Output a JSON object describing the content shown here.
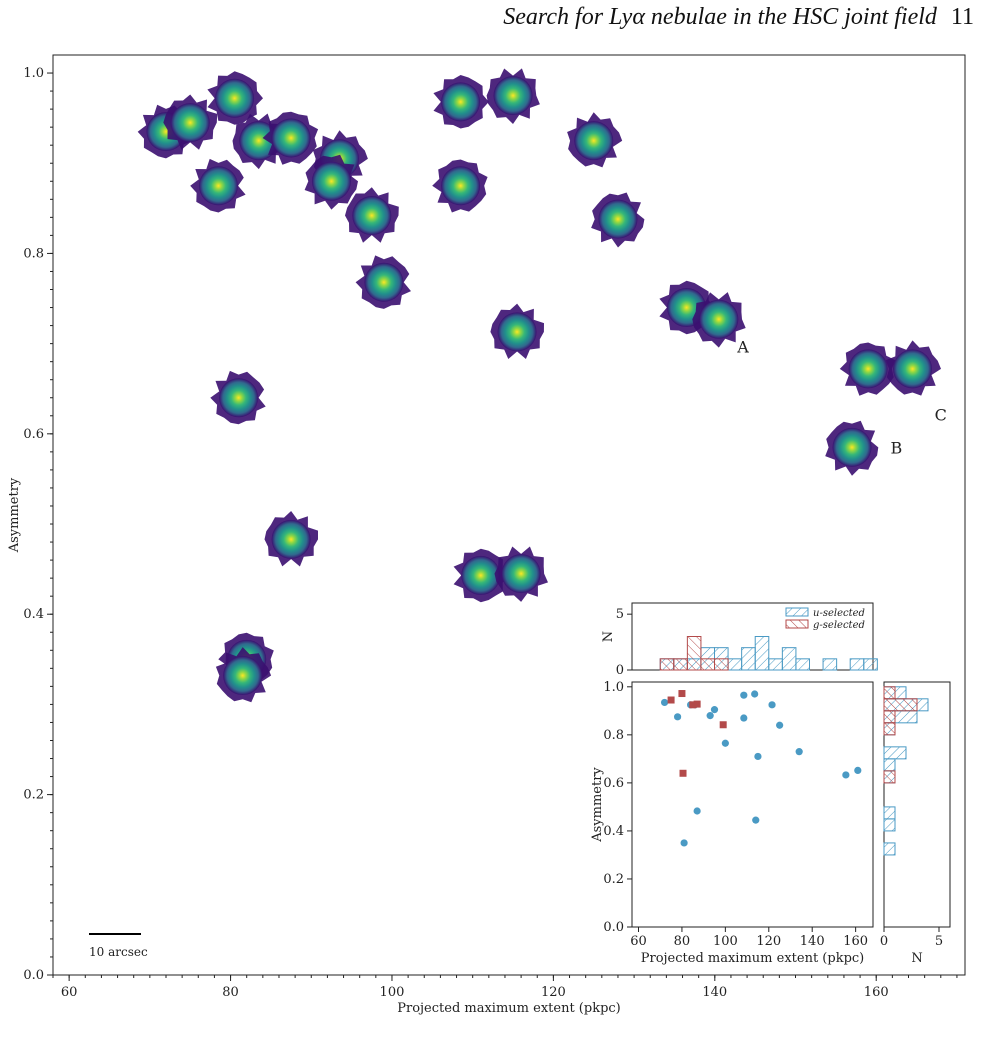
{
  "header": {
    "running_title": "Search for Lyα nebulae in the HSC joint field",
    "page_number": "11"
  },
  "scale_bar_label": "10 arcsec",
  "colors": {
    "u_selected": "#4a9ac4",
    "g_selected": "#b34a4a",
    "blob_outer": "#3b0f70",
    "blob_mid": "#21908c",
    "blob_core": "#fde725"
  },
  "chart_data": [
    {
      "type": "scatter",
      "title": "",
      "xlabel": "Projected maximum extent (pkpc)",
      "ylabel": "Asymmetry",
      "xlim": [
        58,
        171
      ],
      "ylim": [
        0,
        1.02
      ],
      "xticks": [
        60,
        80,
        100,
        120,
        140,
        160
      ],
      "yticks": [
        0.0,
        0.2,
        0.4,
        0.6,
        0.8,
        1.0
      ],
      "marker": "nebula-thumbnail",
      "points": [
        {
          "x": 72,
          "y": 0.935
        },
        {
          "x": 75,
          "y": 0.945
        },
        {
          "x": 80.5,
          "y": 0.972
        },
        {
          "x": 83.5,
          "y": 0.925
        },
        {
          "x": 87.5,
          "y": 0.928
        },
        {
          "x": 93.5,
          "y": 0.905
        },
        {
          "x": 92.5,
          "y": 0.88
        },
        {
          "x": 78.5,
          "y": 0.875
        },
        {
          "x": 97.5,
          "y": 0.842
        },
        {
          "x": 108.5,
          "y": 0.968
        },
        {
          "x": 115,
          "y": 0.975
        },
        {
          "x": 108.5,
          "y": 0.875
        },
        {
          "x": 125,
          "y": 0.925
        },
        {
          "x": 128,
          "y": 0.838
        },
        {
          "x": 99,
          "y": 0.768
        },
        {
          "x": 115.5,
          "y": 0.713
        },
        {
          "x": 136.5,
          "y": 0.74
        },
        {
          "x": 140.5,
          "y": 0.727
        },
        {
          "x": 159,
          "y": 0.672
        },
        {
          "x": 164.5,
          "y": 0.672
        },
        {
          "x": 157,
          "y": 0.585
        },
        {
          "x": 81,
          "y": 0.64
        },
        {
          "x": 87.5,
          "y": 0.483
        },
        {
          "x": 111,
          "y": 0.443
        },
        {
          "x": 116,
          "y": 0.445
        },
        {
          "x": 82,
          "y": 0.35
        },
        {
          "x": 81.5,
          "y": 0.332
        }
      ],
      "annotations": [
        {
          "text": "A",
          "x": 143.5,
          "y": 0.69
        },
        {
          "text": "C",
          "x": 168,
          "y": 0.615
        },
        {
          "text": "B",
          "x": 162.5,
          "y": 0.578
        }
      ]
    },
    {
      "type": "scatter",
      "xlabel": "Projected maximum extent (pkpc)",
      "ylabel": "Asymmetry",
      "xlim": [
        57,
        168
      ],
      "ylim": [
        0,
        1.02
      ],
      "xticks": [
        60,
        80,
        100,
        120,
        140,
        160
      ],
      "yticks": [
        0.0,
        0.2,
        0.4,
        0.6,
        0.8,
        1.0
      ],
      "series": [
        {
          "name": "u-selected",
          "marker": "circle",
          "x": [
            72,
            78,
            84,
            86,
            93,
            95,
            100,
            108.5,
            108.5,
            113.5,
            115,
            121.5,
            125,
            134,
            155.5,
            161,
            87,
            81,
            114
          ],
          "y": [
            0.935,
            0.875,
            0.925,
            0.925,
            0.88,
            0.905,
            0.765,
            0.87,
            0.965,
            0.97,
            0.71,
            0.925,
            0.84,
            0.73,
            0.633,
            0.652,
            0.483,
            0.35,
            0.445
          ]
        },
        {
          "name": "g-selected",
          "marker": "square",
          "x": [
            75,
            80,
            85,
            87,
            99,
            80.5
          ],
          "y": [
            0.945,
            0.972,
            0.925,
            0.928,
            0.842,
            0.64
          ]
        }
      ]
    },
    {
      "type": "bar",
      "orientation": "vertical",
      "ylabel": "N",
      "ylim": [
        0,
        6
      ],
      "yticks": [
        0,
        5
      ],
      "legend_placement": "top-right",
      "legend": [
        "u-selected",
        "g-selected"
      ],
      "bin_width": 6.25,
      "series": [
        {
          "name": "u-selected",
          "bins": [
            [
              70,
              76.25,
              1
            ],
            [
              76.25,
              82.5,
              1
            ],
            [
              82.5,
              88.75,
              1
            ],
            [
              88.75,
              95,
              2
            ],
            [
              95,
              101.25,
              2
            ],
            [
              101.25,
              107.5,
              1
            ],
            [
              107.5,
              113.75,
              2
            ],
            [
              113.75,
              120,
              3
            ],
            [
              120,
              126.25,
              1
            ],
            [
              126.25,
              132.5,
              2
            ],
            [
              132.5,
              138.75,
              1
            ],
            [
              145,
              151.25,
              1
            ],
            [
              157.5,
              163.75,
              1
            ],
            [
              163.75,
              170,
              1
            ]
          ]
        },
        {
          "name": "g-selected",
          "bins": [
            [
              70,
              76.25,
              1
            ],
            [
              76.25,
              82.5,
              1
            ],
            [
              82.5,
              88.75,
              3
            ],
            [
              88.75,
              95,
              1
            ],
            [
              95,
              101.25,
              1
            ]
          ]
        }
      ]
    },
    {
      "type": "bar",
      "orientation": "horizontal",
      "xlabel": "N",
      "xlim": [
        0,
        6
      ],
      "xticks": [
        0,
        5
      ],
      "bin_width": 0.05,
      "series": [
        {
          "name": "u-selected",
          "bins": [
            [
              0.95,
              1.0,
              2
            ],
            [
              0.9,
              0.95,
              4
            ],
            [
              0.85,
              0.9,
              3
            ],
            [
              0.8,
              0.85,
              1
            ],
            [
              0.7,
              0.75,
              2
            ],
            [
              0.65,
              0.7,
              1
            ],
            [
              0.6,
              0.65,
              1
            ],
            [
              0.45,
              0.5,
              1
            ],
            [
              0.4,
              0.45,
              1
            ],
            [
              0.3,
              0.35,
              1
            ]
          ]
        },
        {
          "name": "g-selected",
          "bins": [
            [
              0.95,
              1.0,
              1
            ],
            [
              0.9,
              0.95,
              3
            ],
            [
              0.85,
              0.9,
              1
            ],
            [
              0.8,
              0.85,
              1
            ],
            [
              0.6,
              0.65,
              1
            ]
          ]
        }
      ]
    }
  ]
}
